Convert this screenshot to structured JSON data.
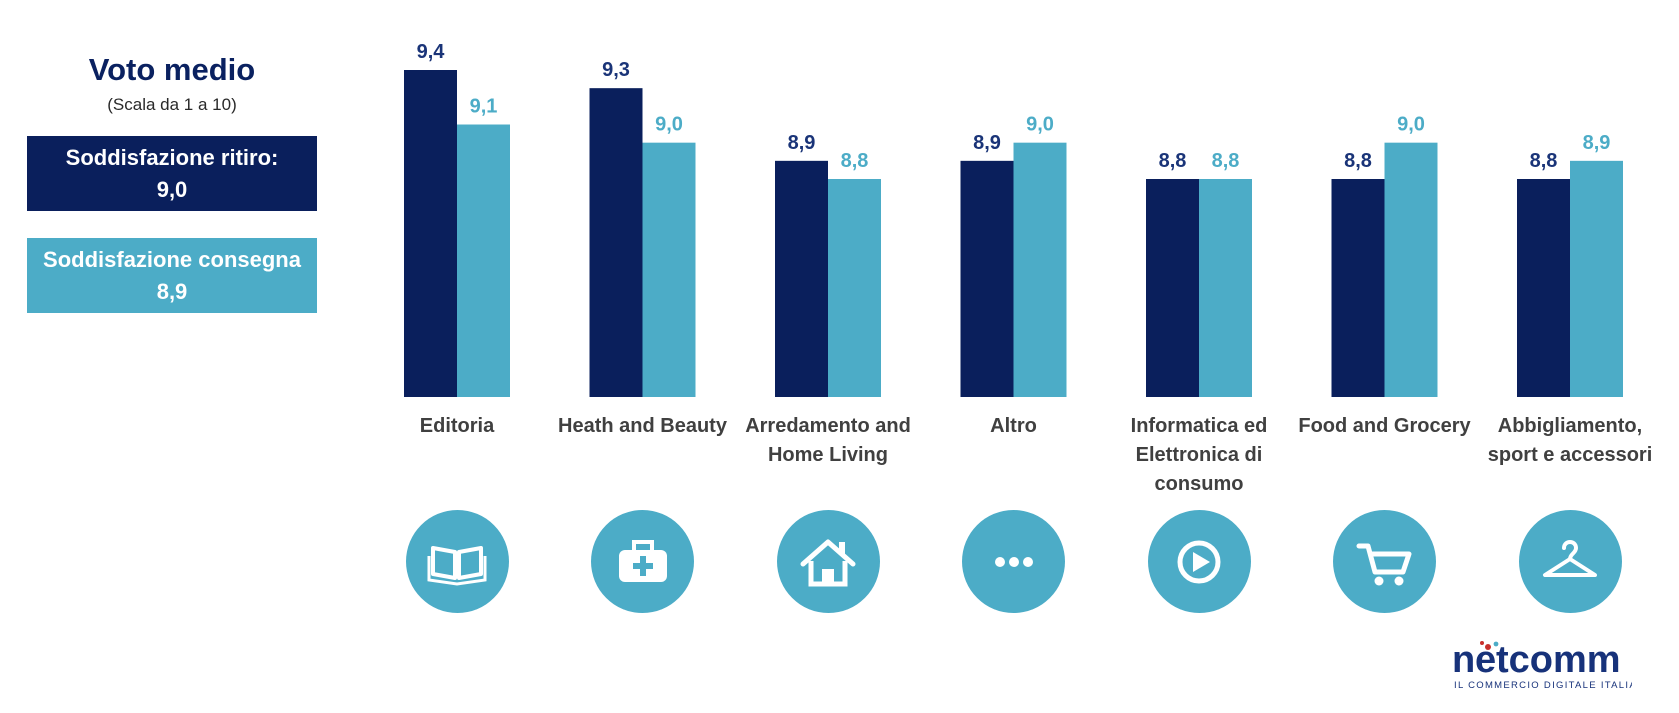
{
  "legend": {
    "title": "Voto medio",
    "subtitle": "(Scala da 1 a 10)",
    "ritiro_label": "Soddisfazione ritiro:",
    "ritiro_value": "9,0",
    "consegna_label": "Soddisfazione consegna",
    "consegna_value": "8,9"
  },
  "colors": {
    "ritiro": "#0a1f5c",
    "consegna": "#4cacc7",
    "icon_bg": "#4cacc7",
    "category_text": "#404040"
  },
  "chart_data": {
    "type": "bar",
    "categories": [
      "Editoria",
      "Heath and Beauty",
      "Arredamento and Home Living",
      "Altro",
      "Informatica ed Elettronica di consumo",
      "Food and Grocery",
      "Abbigliamento, sport e accessori"
    ],
    "series": [
      {
        "name": "Soddisfazione ritiro",
        "values": [
          9.4,
          9.3,
          8.9,
          8.9,
          8.8,
          8.8,
          8.8
        ],
        "labels": [
          "9,4",
          "9,3",
          "8,9",
          "8,9",
          "8,8",
          "8,8",
          "8,8"
        ]
      },
      {
        "name": "Soddisfazione consegna",
        "values": [
          9.1,
          9.0,
          8.8,
          9.0,
          8.8,
          9.0,
          8.9
        ],
        "labels": [
          "9,1",
          "9,0",
          "8,8",
          "9,0",
          "8,8",
          "9,0",
          "8,9"
        ]
      }
    ],
    "ylim": [
      7.6,
      9.4
    ],
    "grid": false,
    "title": "",
    "xlabel": "",
    "ylabel": ""
  },
  "category_labels": [
    {
      "lines": [
        "Editoria"
      ]
    },
    {
      "lines": [
        "Heath and Beauty"
      ]
    },
    {
      "lines": [
        "Arredamento and",
        "Home Living"
      ]
    },
    {
      "lines": [
        "Altro"
      ]
    },
    {
      "lines": [
        "Informatica ed",
        "Elettronica di",
        "consumo"
      ]
    },
    {
      "lines": [
        "Food and Grocery"
      ]
    },
    {
      "lines": [
        "Abbigliamento,",
        "sport e accessori"
      ]
    }
  ],
  "category_icons": [
    "book-icon",
    "medical-kit-icon",
    "home-icon",
    "more-dots-icon",
    "play-circle-icon",
    "shopping-cart-icon",
    "clothes-hanger-icon"
  ],
  "logo": {
    "word_start": "n",
    "word_end": "tcomm",
    "tagline": "IL COMMERCIO DIGITALE ITALIANO"
  }
}
